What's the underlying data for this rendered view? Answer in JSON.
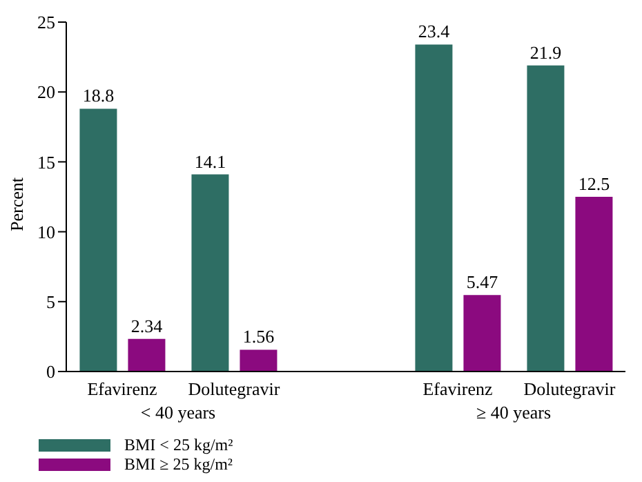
{
  "chart_data": {
    "type": "bar",
    "ylabel": "Percent",
    "categories": [
      "Efavirenz",
      "Dolutegravir",
      null,
      "Efavirenz",
      "Dolutegravir"
    ],
    "series": [
      {
        "name": "BMI < 25 kg/m²",
        "color": "#2e6e64",
        "values": [
          18.8,
          14.1,
          null,
          23.4,
          21.9
        ]
      },
      {
        "name": "BMI ≥ 25 kg/m²",
        "color": "#8b0a7f",
        "values": [
          2.34,
          1.56,
          null,
          5.47,
          12.5
        ]
      }
    ],
    "ylim": [
      0,
      25
    ],
    "yticks": [
      0,
      5,
      10,
      15,
      20,
      25
    ],
    "data_labels": true,
    "legend": "bottom left",
    "annotations": [
      "< 40 years",
      "≥ 40 years"
    ]
  }
}
